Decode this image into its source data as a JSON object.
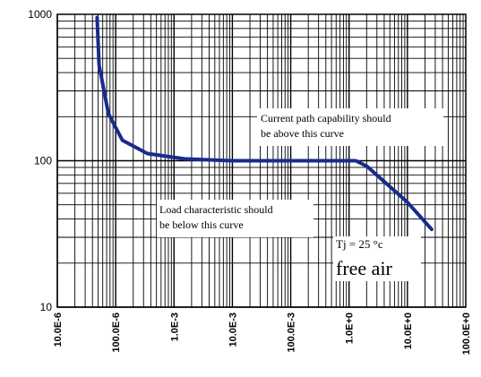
{
  "chart_data": {
    "type": "line",
    "title": "",
    "xlabel": "",
    "ylabel": "",
    "x_scale": "log",
    "y_scale": "log",
    "xlim": [
      1e-05,
      100
    ],
    "ylim": [
      10,
      1000
    ],
    "grid": true,
    "x_ticks": [
      {
        "value": 1e-05,
        "label": "10.0E-6"
      },
      {
        "value": 0.0001,
        "label": "100.0E-6"
      },
      {
        "value": 0.001,
        "label": "1.0E-3"
      },
      {
        "value": 0.01,
        "label": "10.0E-3"
      },
      {
        "value": 0.1,
        "label": "100.0E-3"
      },
      {
        "value": 1,
        "label": "1.0E+0"
      },
      {
        "value": 10,
        "label": "10.0E+0"
      },
      {
        "value": 100,
        "label": "100.0E+0"
      }
    ],
    "y_ticks": [
      {
        "value": 10,
        "label": "10"
      },
      {
        "value": 100,
        "label": "100"
      },
      {
        "value": 1000,
        "label": "1000"
      }
    ],
    "series": [
      {
        "color": "#1a2a8c",
        "x": [
          4.8e-05,
          5.2e-05,
          7.5e-05,
          0.00013,
          0.00035,
          0.0015,
          0.01,
          0.1,
          1.0,
          1.3,
          2.0,
          4.0,
          10,
          26
        ],
        "y": [
          950,
          450,
          210,
          138,
          112,
          103,
          100,
          100,
          100,
          100,
          92,
          72,
          52,
          34
        ]
      }
    ],
    "annotations": [
      {
        "id": "current",
        "lines": [
          "Current path capability should",
          "be above this curve"
        ]
      },
      {
        "id": "load",
        "lines": [
          "Load characteristic should",
          "be below this curve"
        ]
      },
      {
        "id": "tj",
        "lines": [
          "Tj = 25 °c"
        ]
      },
      {
        "id": "free",
        "lines": [
          "free air"
        ]
      }
    ]
  }
}
